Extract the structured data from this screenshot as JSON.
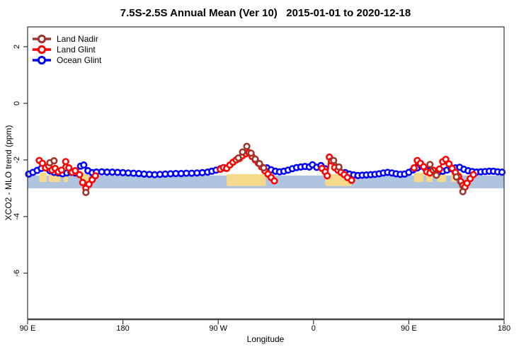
{
  "chart_data": {
    "type": "line",
    "title": "7.5S-2.5S Annual Mean (Ver 10)   2015-01-01 to 2020-12-18",
    "xlabel": "Longitude",
    "ylabel": "XCO2 - MLO trend (ppm)",
    "grid": false,
    "legend_position": "top-left",
    "x_axis": {
      "domain": [
        90,
        540
      ],
      "ticks": [
        {
          "pos": 90,
          "label": "90 E"
        },
        {
          "pos": 180,
          "label": "180"
        },
        {
          "pos": 270,
          "label": "90 W"
        },
        {
          "pos": 360,
          "label": "0"
        },
        {
          "pos": 450,
          "label": "90 E"
        },
        {
          "pos": 540,
          "label": "180"
        }
      ]
    },
    "y_axis": {
      "domain": [
        -7.63,
        2.7
      ],
      "ticks": [
        {
          "pos": 2,
          "label": "2"
        },
        {
          "pos": 0,
          "label": "0"
        },
        {
          "pos": -2,
          "label": "-2"
        },
        {
          "pos": -4,
          "label": "-4"
        },
        {
          "pos": -6,
          "label": "-6"
        }
      ]
    },
    "bands": {
      "ocean": {
        "name": "ocean-longitudes",
        "color": "#AFC4DF",
        "from": 90,
        "to": 540,
        "top": -2.55,
        "bottom": -3.0
      },
      "land": {
        "name": "land-longitudes",
        "color": "#F7D98B",
        "solid": [
          {
            "from": 278,
            "to": 315,
            "top": -2.5,
            "bottom": -2.92
          },
          {
            "from": 371,
            "to": 396,
            "top": -2.5,
            "bottom": -2.92
          }
        ],
        "patches": [
          {
            "from": 101,
            "to": 108,
            "top": -2.45,
            "bottom": -2.78
          },
          {
            "from": 110,
            "to": 121,
            "top": -2.45,
            "bottom": -2.78
          },
          {
            "from": 124,
            "to": 128,
            "top": -2.45,
            "bottom": -2.78
          },
          {
            "from": 140,
            "to": 148,
            "top": -2.45,
            "bottom": -2.78
          },
          {
            "from": 455,
            "to": 464,
            "top": -2.45,
            "bottom": -2.78
          },
          {
            "from": 466.5,
            "to": 472.5,
            "top": -2.45,
            "bottom": -2.78
          },
          {
            "from": 477,
            "to": 485,
            "top": -2.45,
            "bottom": -2.78
          },
          {
            "from": 490,
            "to": 494.5,
            "top": -2.45,
            "bottom": -2.78
          }
        ]
      }
    },
    "series": [
      {
        "name": "Land Nadir",
        "color": "#9F352C",
        "marker": "open-circle",
        "segments": [
          [
            [
              111,
              -2.1
            ],
            [
              115,
              -2.03
            ]
          ],
          [
            [
              145,
              -3.15
            ]
          ],
          [
            [
              289,
              -1.93
            ],
            [
              293,
              -1.72
            ],
            [
              297,
              -1.52
            ],
            [
              301,
              -1.76
            ],
            [
              305,
              -1.97
            ],
            [
              309,
              -2.13
            ],
            [
              313,
              -2.28
            ]
          ],
          [
            [
              379,
              -2.02
            ],
            [
              384,
              -2.25
            ]
          ],
          [
            [
              470,
              -2.16
            ],
            [
              476,
              -2.54
            ]
          ],
          [
            [
              495,
              -2.6
            ],
            [
              501,
              -3.12
            ]
          ]
        ]
      },
      {
        "name": "Land Glint",
        "color": "#FF0000",
        "marker": "open-circle",
        "segments": [
          [
            [
              101,
              -2.02
            ],
            [
              104,
              -2.12
            ],
            [
              107,
              -2.28
            ],
            [
              110,
              -2.22
            ],
            [
              113,
              -2.36
            ],
            [
              116,
              -2.3
            ],
            [
              119,
              -2.42
            ],
            [
              122,
              -2.36
            ],
            [
              126,
              -2.06
            ],
            [
              129,
              -2.28
            ],
            [
              132,
              -2.44
            ],
            [
              135,
              -2.38
            ],
            [
              139,
              -2.52
            ],
            [
              142,
              -2.8
            ],
            [
              145,
              -3.0
            ],
            [
              148,
              -2.86
            ],
            [
              151,
              -2.7
            ],
            [
              154,
              -2.56
            ]
          ],
          [
            [
              272,
              -2.33
            ],
            [
              275,
              -2.27
            ],
            [
              278,
              -2.3
            ],
            [
              281,
              -2.18
            ],
            [
              284,
              -2.08
            ],
            [
              287,
              -2.0
            ],
            [
              290,
              -1.95
            ],
            [
              293,
              -1.85
            ],
            [
              296,
              -1.78
            ],
            [
              299,
              -1.74
            ],
            [
              302,
              -1.88
            ],
            [
              305,
              -2.0
            ],
            [
              308,
              -2.12
            ],
            [
              311,
              -2.25
            ],
            [
              314,
              -2.38
            ],
            [
              317,
              -2.5
            ],
            [
              320,
              -2.62
            ],
            [
              323,
              -2.74
            ]
          ],
          [
            [
              368,
              -2.3
            ],
            [
              371,
              -2.42
            ],
            [
              373,
              -2.56
            ],
            [
              375,
              -1.9
            ],
            [
              377,
              -2.04
            ],
            [
              380,
              -2.27
            ],
            [
              383,
              -2.36
            ],
            [
              386,
              -2.44
            ],
            [
              389,
              -2.52
            ],
            [
              392,
              -2.62
            ],
            [
              396,
              -2.72
            ]
          ],
          [
            [
              455,
              -2.28
            ],
            [
              458,
              -2.02
            ],
            [
              461,
              -2.12
            ],
            [
              464,
              -2.24
            ],
            [
              467,
              -2.42
            ],
            [
              470,
              -2.46
            ],
            [
              473,
              -2.36
            ],
            [
              476,
              -2.5
            ],
            [
              479,
              -2.32
            ],
            [
              482,
              -2.06
            ],
            [
              485,
              -1.98
            ],
            [
              488,
              -2.14
            ],
            [
              491,
              -2.3
            ],
            [
              494,
              -2.44
            ],
            [
              497,
              -2.58
            ],
            [
              499,
              -2.76
            ],
            [
              501,
              -2.9
            ],
            [
              503,
              -2.96
            ],
            [
              505,
              -2.82
            ],
            [
              508,
              -2.66
            ],
            [
              511,
              -2.52
            ]
          ]
        ]
      },
      {
        "name": "Ocean Glint",
        "color": "#0000FF",
        "marker": "open-circle",
        "segments": [
          [
            [
              91,
              -2.5
            ],
            [
              95,
              -2.44
            ],
            [
              99,
              -2.37
            ],
            [
              103,
              -2.3
            ],
            [
              107,
              -2.28
            ],
            [
              111,
              -2.38
            ],
            [
              115,
              -2.44
            ],
            [
              119,
              -2.46
            ],
            [
              123,
              -2.49
            ],
            [
              127,
              -2.46
            ],
            [
              131,
              -2.44
            ],
            [
              135,
              -2.46
            ],
            [
              140,
              -2.22
            ],
            [
              143,
              -2.18
            ],
            [
              147,
              -2.38
            ],
            [
              151,
              -2.45
            ],
            [
              155,
              -2.43
            ],
            [
              160,
              -2.42
            ],
            [
              165,
              -2.43
            ],
            [
              170,
              -2.43
            ],
            [
              175,
              -2.44
            ],
            [
              180,
              -2.45
            ],
            [
              185,
              -2.46
            ],
            [
              190,
              -2.47
            ],
            [
              195,
              -2.48
            ],
            [
              200,
              -2.5
            ],
            [
              205,
              -2.51
            ],
            [
              210,
              -2.52
            ],
            [
              215,
              -2.51
            ],
            [
              220,
              -2.5
            ],
            [
              225,
              -2.49
            ],
            [
              230,
              -2.48
            ],
            [
              235,
              -2.48
            ],
            [
              240,
              -2.47
            ],
            [
              245,
              -2.47
            ],
            [
              250,
              -2.46
            ],
            [
              255,
              -2.45
            ],
            [
              260,
              -2.43
            ],
            [
              264,
              -2.4
            ],
            [
              268,
              -2.36
            ],
            [
              272,
              -2.31
            ],
            [
              276,
              -2.28
            ]
          ],
          [
            [
              316,
              -2.28
            ],
            [
              320,
              -2.35
            ],
            [
              324,
              -2.4
            ],
            [
              328,
              -2.42
            ],
            [
              332,
              -2.4
            ],
            [
              336,
              -2.36
            ],
            [
              340,
              -2.31
            ],
            [
              344,
              -2.27
            ],
            [
              348,
              -2.25
            ],
            [
              352,
              -2.23
            ],
            [
              356,
              -2.25
            ],
            [
              359,
              -2.17
            ],
            [
              363,
              -2.26
            ],
            [
              367,
              -2.2
            ],
            [
              371,
              -2.31
            ]
          ],
          [
            [
              390,
              -2.45
            ],
            [
              394,
              -2.5
            ],
            [
              398,
              -2.53
            ],
            [
              402,
              -2.55
            ],
            [
              406,
              -2.54
            ],
            [
              410,
              -2.53
            ],
            [
              414,
              -2.52
            ],
            [
              418,
              -2.51
            ],
            [
              422,
              -2.49
            ],
            [
              426,
              -2.46
            ],
            [
              430,
              -2.44
            ],
            [
              434,
              -2.46
            ],
            [
              438,
              -2.49
            ],
            [
              442,
              -2.51
            ],
            [
              446,
              -2.5
            ],
            [
              450,
              -2.44
            ],
            [
              454,
              -2.35
            ],
            [
              458,
              -2.28
            ],
            [
              462,
              -2.22
            ],
            [
              466,
              -2.32
            ],
            [
              470,
              -2.38
            ],
            [
              474,
              -2.42
            ],
            [
              478,
              -2.43
            ],
            [
              482,
              -2.4
            ],
            [
              486,
              -2.36
            ],
            [
              490,
              -2.31
            ],
            [
              494,
              -2.28
            ],
            [
              498,
              -2.26
            ],
            [
              502,
              -2.33
            ],
            [
              506,
              -2.38
            ],
            [
              510,
              -2.41
            ],
            [
              514,
              -2.43
            ],
            [
              518,
              -2.42
            ],
            [
              522,
              -2.41
            ],
            [
              526,
              -2.4
            ],
            [
              530,
              -2.4
            ],
            [
              534,
              -2.42
            ],
            [
              538,
              -2.43
            ]
          ]
        ]
      }
    ]
  }
}
